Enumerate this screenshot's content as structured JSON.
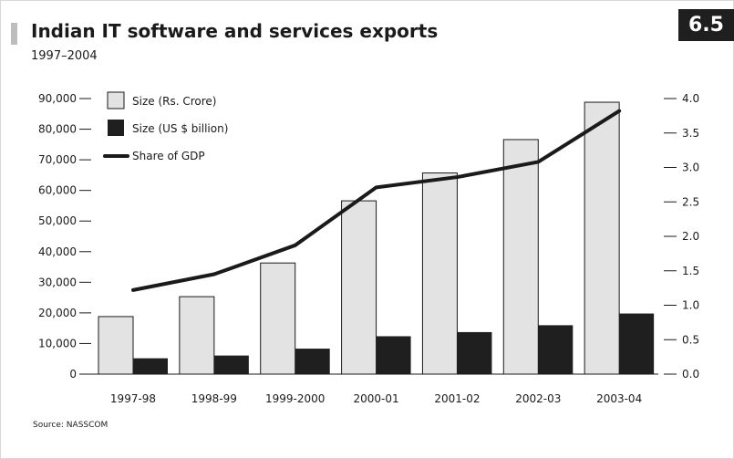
{
  "header": {
    "title": "Indian IT software and services exports",
    "subtitle": "1997–2004",
    "badge": "6.5"
  },
  "footer": {
    "source": "Source: NASSCOM"
  },
  "colors": {
    "bar_rs": "#e3e3e3",
    "bar_usd": "#1f1f1f",
    "line": "#1a1a1a",
    "axis": "#1a1a1a"
  },
  "chart_data": {
    "type": "bar",
    "categories": [
      "1997-98",
      "1998-99",
      "1999-2000",
      "2000-01",
      "2001-02",
      "2002-03",
      "2003-04"
    ],
    "series": [
      {
        "name": "Size (Rs. Crore)",
        "kind": "bar",
        "axis": "left",
        "values": [
          18800,
          25300,
          36300,
          56600,
          65700,
          76600,
          88800
        ]
      },
      {
        "name": "Size (US $ billion)",
        "kind": "bar",
        "axis": "right",
        "values": [
          0.23,
          0.27,
          0.37,
          0.55,
          0.61,
          0.71,
          0.88
        ]
      },
      {
        "name": "Share of GDP",
        "kind": "line",
        "axis": "right",
        "values": [
          1.22,
          1.45,
          1.87,
          2.71,
          2.86,
          3.08,
          3.82
        ]
      }
    ],
    "left_axis": {
      "ylim": [
        0,
        90000
      ],
      "ticks": [
        "0",
        "10,000",
        "20,000",
        "30,000",
        "40,000",
        "50,000",
        "60,000",
        "70,000",
        "80,000",
        "90,000"
      ]
    },
    "right_axis": {
      "ylim": [
        0,
        4.0
      ],
      "ticks": [
        "0.0",
        "0.5",
        "1.0",
        "1.5",
        "2.0",
        "2.5",
        "3.0",
        "3.5",
        "4.0"
      ]
    },
    "legend": {
      "placement": "top-left",
      "entries": [
        "Size (Rs. Crore)",
        "Size (US $ billion)",
        "Share of GDP"
      ]
    },
    "grid": false
  }
}
